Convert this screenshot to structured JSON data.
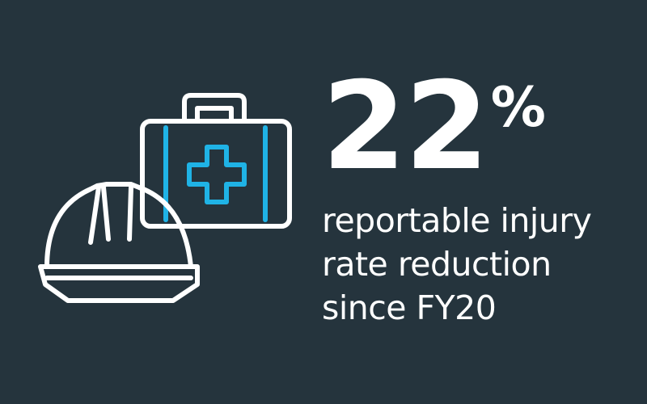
{
  "stat": {
    "value": "22",
    "unit": "%",
    "caption_lines": [
      "reportable injury",
      "rate reduction",
      "since FY20"
    ]
  },
  "icons": {
    "first_aid_kit": "first-aid-kit-icon",
    "hard_hat": "hard-hat-icon"
  },
  "colors": {
    "background": "#25343d",
    "line": "#ffffff",
    "accent": "#1fb3e6"
  }
}
